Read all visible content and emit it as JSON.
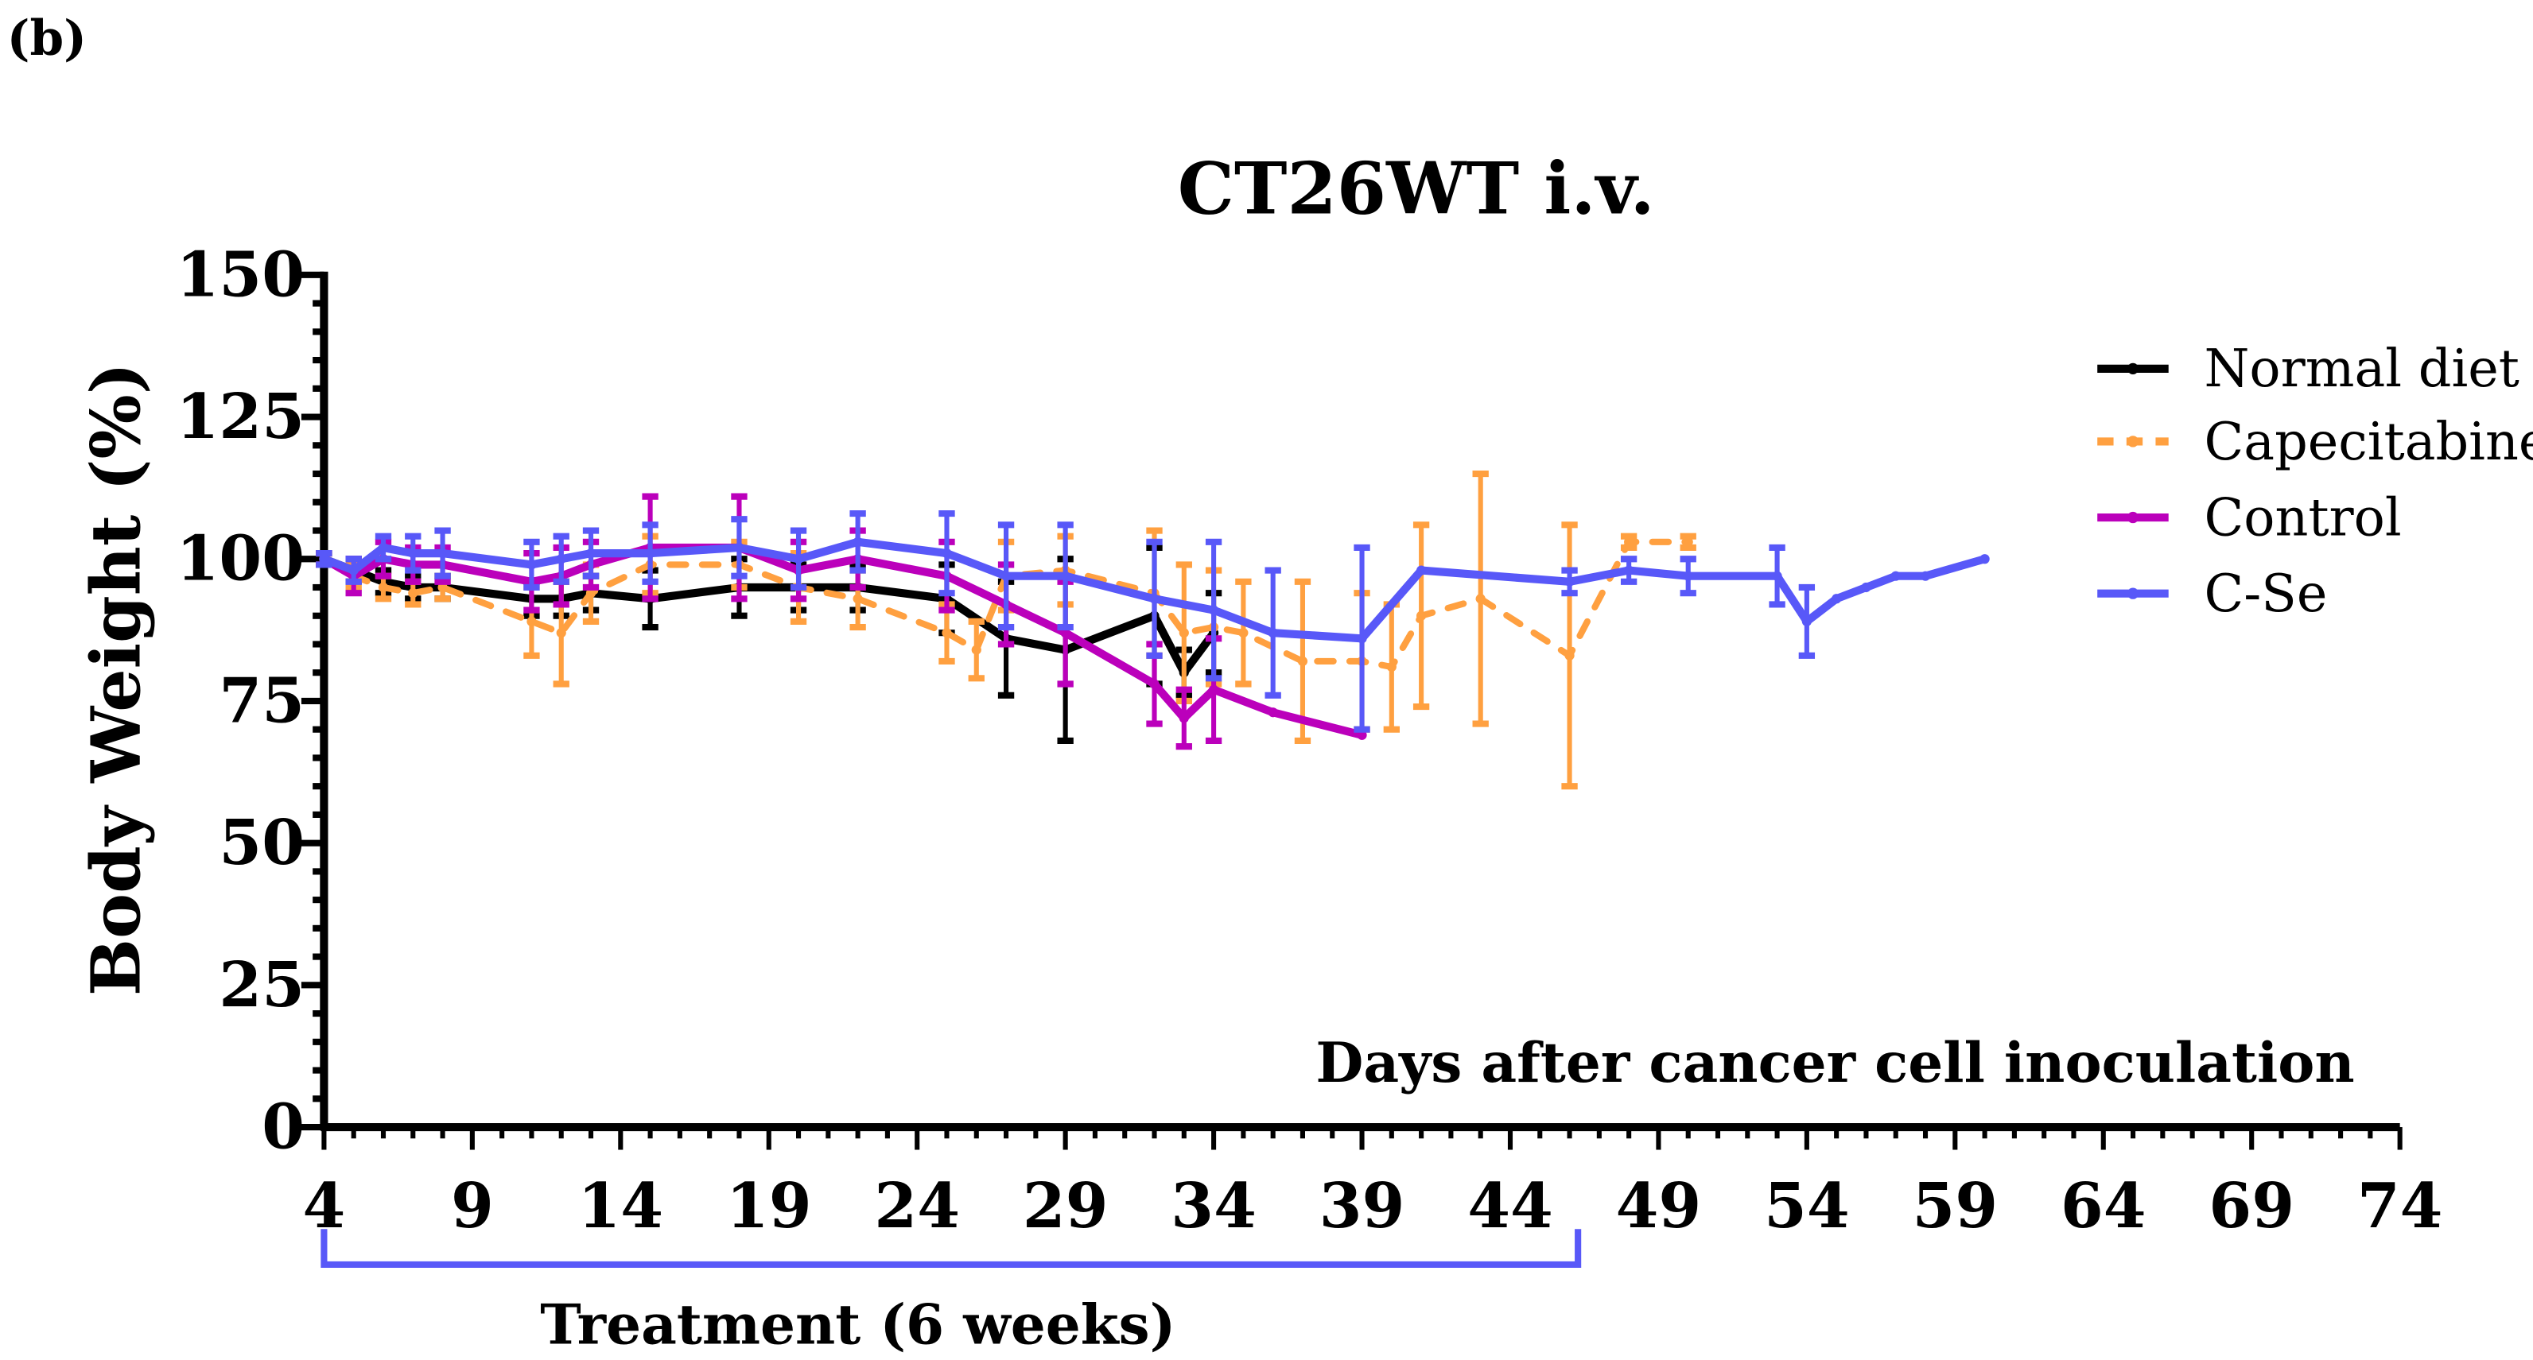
{
  "panel_label": "(b)",
  "chart_data": {
    "type": "line",
    "title": "CT26WT i.v.",
    "xlabel": "Days after cancer cell inoculation",
    "ylabel": "Body Weight (%)",
    "xlim": [
      4,
      74
    ],
    "ylim": [
      0,
      150
    ],
    "xticks": [
      4,
      9,
      14,
      19,
      24,
      29,
      34,
      39,
      44,
      49,
      54,
      59,
      64,
      69,
      74
    ],
    "yticks": [
      0,
      25,
      50,
      75,
      100,
      125,
      150
    ],
    "grid": false,
    "legend_position": "top-right",
    "annotation": {
      "label": "Treatment (6 weeks)",
      "x_range": [
        4,
        46
      ]
    },
    "series": [
      {
        "name": "Normal diet",
        "color": "#000000",
        "dash": false,
        "x": [
          4,
          5,
          6,
          7,
          8,
          11,
          12,
          13,
          15,
          18,
          20,
          22,
          25,
          27,
          29,
          32,
          33,
          34
        ],
        "y": [
          100,
          98,
          96,
          95,
          95,
          93,
          93,
          94,
          93,
          95,
          95,
          95,
          93,
          86,
          84,
          90,
          80,
          87
        ],
        "err": [
          1,
          2,
          2,
          2,
          2,
          3,
          3,
          3,
          5,
          5,
          4,
          4,
          6,
          10,
          16,
          12,
          4,
          7
        ]
      },
      {
        "name": "Capecitabine",
        "color": "#FFA040",
        "dash": true,
        "x": [
          4,
          5,
          6,
          7,
          8,
          11,
          12,
          13,
          15,
          18,
          20,
          22,
          25,
          26,
          27,
          29,
          32,
          33,
          34,
          35,
          37,
          39,
          40,
          41,
          43,
          46,
          48,
          50
        ],
        "y": [
          100,
          97,
          95,
          94,
          95,
          89,
          87,
          94,
          99,
          99,
          95,
          93,
          87,
          84,
          97,
          98,
          94,
          87,
          88,
          87,
          82,
          82,
          81,
          90,
          93,
          83,
          103,
          103
        ],
        "err": [
          1,
          2,
          2,
          2,
          2,
          6,
          9,
          5,
          5,
          4,
          6,
          5,
          5,
          5,
          6,
          6,
          11,
          12,
          10,
          9,
          14,
          12,
          11,
          16,
          22,
          23,
          1,
          1
        ]
      },
      {
        "name": "Control",
        "color": "#BB00BB",
        "dash": false,
        "x": [
          4,
          5,
          6,
          7,
          8,
          11,
          12,
          13,
          15,
          18,
          20,
          22,
          25,
          27,
          29,
          32,
          33,
          34,
          36,
          39
        ],
        "y": [
          100,
          97,
          100,
          99,
          99,
          96,
          97,
          99,
          102,
          102,
          98,
          100,
          97,
          92,
          87,
          78,
          72,
          77,
          73,
          69
        ],
        "err": [
          1,
          3,
          3,
          3,
          3,
          5,
          5,
          4,
          9,
          9,
          5,
          5,
          6,
          7,
          9,
          7,
          5,
          9,
          0,
          0
        ]
      },
      {
        "name": "C-Se",
        "color": "#5858F8",
        "dash": false,
        "x": [
          4,
          5,
          6,
          7,
          8,
          11,
          12,
          13,
          15,
          18,
          20,
          22,
          25,
          27,
          29,
          32,
          34,
          36,
          39,
          41,
          46,
          48,
          50,
          53,
          54,
          55,
          56,
          57,
          58,
          60
        ],
        "y": [
          100,
          98,
          102,
          101,
          101,
          99,
          100,
          101,
          101,
          102,
          100,
          103,
          101,
          97,
          97,
          93,
          91,
          87,
          86,
          98,
          96,
          98,
          97,
          97,
          89,
          93,
          95,
          97,
          97,
          100
        ],
        "err": [
          1,
          2,
          2,
          3,
          4,
          4,
          4,
          4,
          5,
          5,
          5,
          5,
          7,
          9,
          9,
          10,
          12,
          11,
          16,
          0,
          2,
          2,
          3,
          5,
          6,
          0,
          0,
          0,
          0,
          0
        ]
      }
    ]
  }
}
